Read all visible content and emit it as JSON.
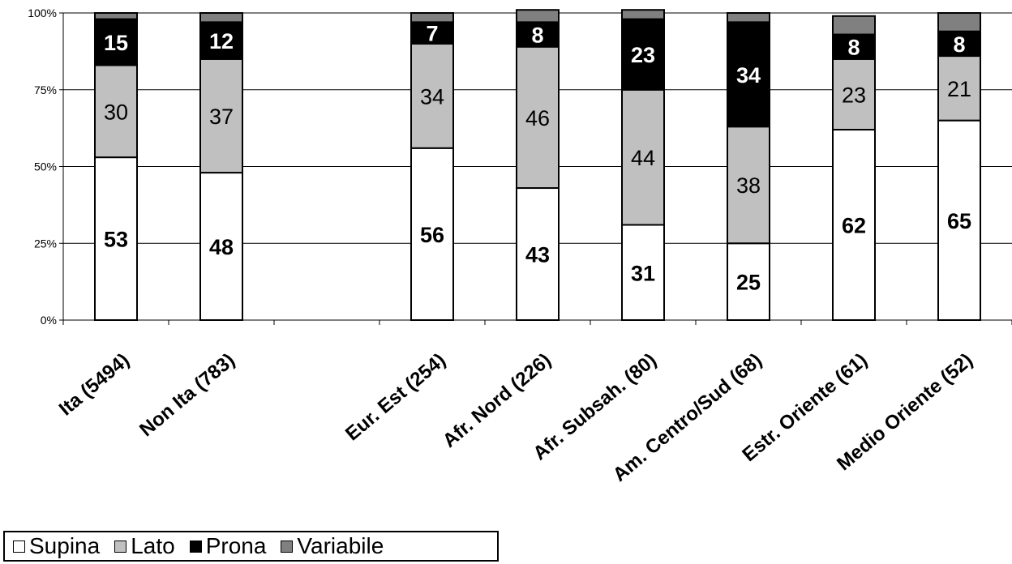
{
  "chart_data": {
    "type": "bar",
    "stacked": "percent",
    "categories": [
      "Ita (5494)",
      "Non Ita (783)",
      "",
      "Eur. Est (254)",
      "Afr. Nord (226)",
      "Afr. Subsah. (80)",
      "Am. Centro/Sud (68)",
      "Estr. Oriente (61)",
      "Medio Oriente (52)"
    ],
    "series": [
      {
        "name": "Supina",
        "color": "#ffffff",
        "values": [
          53,
          48,
          null,
          56,
          43,
          31,
          25,
          62,
          65
        ]
      },
      {
        "name": "Lato",
        "color": "#c0c0c0",
        "values": [
          30,
          37,
          null,
          34,
          46,
          44,
          38,
          23,
          21
        ]
      },
      {
        "name": "Prona",
        "color": "#000000",
        "values": [
          15,
          12,
          null,
          7,
          8,
          23,
          34,
          8,
          8
        ]
      },
      {
        "name": "Variabile",
        "color": "#808080",
        "values": [
          2,
          3,
          null,
          3,
          4,
          3,
          3,
          6,
          6
        ]
      }
    ],
    "data_labels": [
      [
        "53",
        "30",
        "15",
        ""
      ],
      [
        "48",
        "37",
        "12",
        ""
      ],
      [
        "",
        "",
        "",
        ""
      ],
      [
        "56",
        "34",
        "7",
        ""
      ],
      [
        "43",
        "46",
        "8",
        ""
      ],
      [
        "31",
        "44",
        "23",
        ""
      ],
      [
        "25",
        "38",
        "34",
        ""
      ],
      [
        "62",
        "23",
        "8",
        ""
      ],
      [
        "65",
        "21",
        "8",
        ""
      ]
    ],
    "y_ticks": [
      "0%",
      "25%",
      "50%",
      "75%",
      "100%"
    ],
    "ylim": [
      0,
      100
    ],
    "grid": true,
    "legend_position": "bottom-left"
  }
}
